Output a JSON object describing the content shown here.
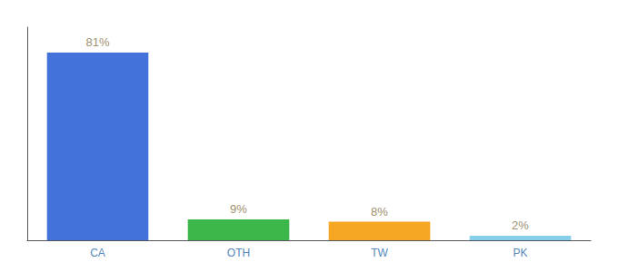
{
  "chart_data": {
    "type": "bar",
    "categories": [
      "CA",
      "OTH",
      "TW",
      "PK"
    ],
    "values": [
      81,
      9,
      8,
      2
    ],
    "value_labels": [
      "81%",
      "9%",
      "8%",
      "2%"
    ],
    "colors": [
      "#4472db",
      "#3cb84a",
      "#f5a623",
      "#87ceeb"
    ],
    "ylim": [
      0,
      92
    ],
    "yticks": [],
    "grid": false,
    "data_labels": true,
    "tick_labels": "x"
  }
}
